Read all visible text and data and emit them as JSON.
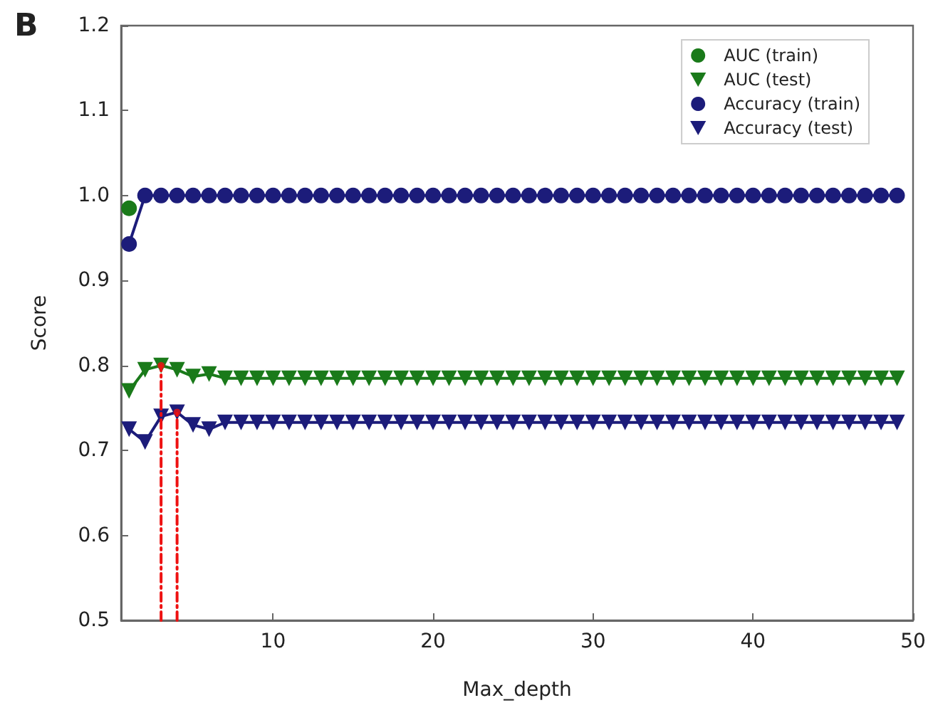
{
  "chart_data": {
    "type": "line",
    "xlabel": "Max_depth",
    "ylabel": "Score",
    "annotations": [
      "B"
    ],
    "xlim": [
      0.5,
      50
    ],
    "xticks": [
      10,
      20,
      30,
      40,
      50
    ],
    "ylim": [
      0.5,
      1.2
    ],
    "yticks": [
      0.5,
      0.6,
      0.7,
      0.8,
      0.9,
      {
        "value": 1,
        "label": "1.0"
      },
      1.1,
      1.2
    ],
    "grid": false,
    "legend": "top right",
    "line_style": "solid",
    "series": [
      {
        "name": "AUC (train)",
        "color": "#1a7a1a",
        "marker": "circle",
        "x": [
          1
        ],
        "values": [
          0.985
        ]
      },
      {
        "name": "AUC (test)",
        "color": "#1a7a1a",
        "marker": "triangle",
        "x": [
          1,
          2,
          3,
          4,
          5,
          6,
          7,
          8,
          9,
          10,
          11,
          12,
          13,
          14,
          15,
          16,
          17,
          18,
          19,
          20,
          21,
          22,
          23,
          24,
          25,
          26,
          27,
          28,
          29,
          30,
          31,
          32,
          33,
          34,
          35,
          36,
          37,
          38,
          39,
          40,
          41,
          42,
          43,
          44,
          45,
          46,
          47,
          48,
          49
        ],
        "values": [
          0.77,
          0.795,
          0.8,
          0.795,
          0.787,
          0.79,
          0.785,
          0.785,
          0.785,
          0.785,
          0.785,
          0.785,
          0.785,
          0.785,
          0.785,
          0.785,
          0.785,
          0.785,
          0.785,
          0.785,
          0.785,
          0.785,
          0.785,
          0.785,
          0.785,
          0.785,
          0.785,
          0.785,
          0.785,
          0.785,
          0.785,
          0.785,
          0.785,
          0.785,
          0.785,
          0.785,
          0.785,
          0.785,
          0.785,
          0.785,
          0.785,
          0.785,
          0.785,
          0.785,
          0.785,
          0.785,
          0.785,
          0.785,
          0.785
        ]
      },
      {
        "name": "Accuracy (train)",
        "color": "#1c1c7a",
        "marker": "circle",
        "x": [
          1,
          2,
          3,
          4,
          5,
          6,
          7,
          8,
          9,
          10,
          11,
          12,
          13,
          14,
          15,
          16,
          17,
          18,
          19,
          20,
          21,
          22,
          23,
          24,
          25,
          26,
          27,
          28,
          29,
          30,
          31,
          32,
          33,
          34,
          35,
          36,
          37,
          38,
          39,
          40,
          41,
          42,
          43,
          44,
          45,
          46,
          47,
          48,
          49
        ],
        "values": [
          0.943,
          1.0,
          1.0,
          1.0,
          1.0,
          1.0,
          1.0,
          1.0,
          1.0,
          1.0,
          1.0,
          1.0,
          1.0,
          1.0,
          1.0,
          1.0,
          1.0,
          1.0,
          1.0,
          1.0,
          1.0,
          1.0,
          1.0,
          1.0,
          1.0,
          1.0,
          1.0,
          1.0,
          1.0,
          1.0,
          1.0,
          1.0,
          1.0,
          1.0,
          1.0,
          1.0,
          1.0,
          1.0,
          1.0,
          1.0,
          1.0,
          1.0,
          1.0,
          1.0,
          1.0,
          1.0,
          1.0,
          1.0,
          1.0
        ]
      },
      {
        "name": "Accuracy (test)",
        "color": "#1c1c7a",
        "marker": "triangle",
        "x": [
          1,
          2,
          3,
          4,
          5,
          6,
          7,
          8,
          9,
          10,
          11,
          12,
          13,
          14,
          15,
          16,
          17,
          18,
          19,
          20,
          21,
          22,
          23,
          24,
          25,
          26,
          27,
          28,
          29,
          30,
          31,
          32,
          33,
          34,
          35,
          36,
          37,
          38,
          39,
          40,
          41,
          42,
          43,
          44,
          45,
          46,
          47,
          48,
          49
        ],
        "values": [
          0.725,
          0.71,
          0.74,
          0.745,
          0.73,
          0.725,
          0.733,
          0.733,
          0.733,
          0.733,
          0.733,
          0.733,
          0.733,
          0.733,
          0.733,
          0.733,
          0.733,
          0.733,
          0.733,
          0.733,
          0.733,
          0.733,
          0.733,
          0.733,
          0.733,
          0.733,
          0.733,
          0.733,
          0.733,
          0.733,
          0.733,
          0.733,
          0.733,
          0.733,
          0.733,
          0.733,
          0.733,
          0.733,
          0.733,
          0.733,
          0.733,
          0.733,
          0.733,
          0.733,
          0.733,
          0.733,
          0.733,
          0.733,
          0.733
        ]
      },
      {
        "color": "#ee1111",
        "marker": "none",
        "line_style": "dashed",
        "x": [
          3,
          3
        ],
        "values": [
          0.5,
          0.8
        ]
      },
      {
        "color": "#ee1111",
        "marker": "none",
        "line_style": "dashed",
        "x": [
          4,
          4
        ],
        "values": [
          0.5,
          0.745
        ]
      },
      {
        "type": "scatter",
        "color": "#ee1111",
        "marker": "circle",
        "x": [
          3,
          4
        ],
        "values": [
          0.8,
          0.745
        ]
      }
    ]
  }
}
